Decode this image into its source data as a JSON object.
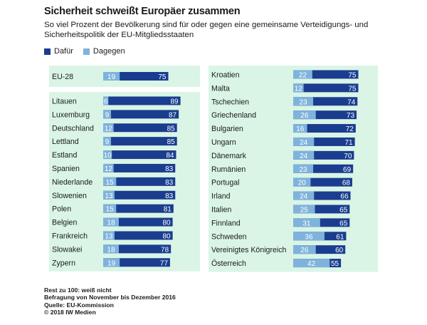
{
  "title": "Sicherheit schweißt Europäer zusammen",
  "subtitle": "So viel Prozent der Bevölkerung sind für oder gegen eine gemeinsame Verteidigungs- und Sicherheitspolitik der EU-Mitgliedsstaaten",
  "colors": {
    "dafur": "#1a3d8f",
    "dagegen": "#7fb3dc",
    "panel": "#daf5e6",
    "text": "#1a1a1a"
  },
  "legend": {
    "dafur": "Dafür",
    "dagegen": "Dagegen"
  },
  "notes": [
    "Rest zu 100: weiß nicht",
    "Befragung von November bis Dezember 2016",
    "Quelle: EU-Kommission",
    "© 2018 IW Medien"
  ],
  "chart_data": {
    "type": "bar",
    "title": "Sicherheit schweißt Europäer zusammen",
    "unit": "Prozent",
    "xlim": [
      0,
      100
    ],
    "series_names": [
      "Dafür",
      "Dagegen"
    ],
    "left_panel": {
      "summary": [
        {
          "country": "EU-28",
          "dafur": 75,
          "dagegen": 19
        }
      ],
      "rows": [
        {
          "country": "Litauen",
          "dafur": 89,
          "dagegen": 6
        },
        {
          "country": "Luxemburg",
          "dafur": 87,
          "dagegen": 9
        },
        {
          "country": "Deutschland",
          "dafur": 85,
          "dagegen": 12
        },
        {
          "country": "Lettland",
          "dafur": 85,
          "dagegen": 9
        },
        {
          "country": "Estland",
          "dafur": 84,
          "dagegen": 10
        },
        {
          "country": "Spanien",
          "dafur": 83,
          "dagegen": 12
        },
        {
          "country": "Niederlande",
          "dafur": 83,
          "dagegen": 15
        },
        {
          "country": "Slowenien",
          "dafur": 83,
          "dagegen": 13
        },
        {
          "country": "Polen",
          "dafur": 81,
          "dagegen": 15
        },
        {
          "country": "Belgien",
          "dafur": 80,
          "dagegen": 18
        },
        {
          "country": "Frankreich",
          "dafur": 80,
          "dagegen": 13
        },
        {
          "country": "Slowakei",
          "dafur": 78,
          "dagegen": 18
        },
        {
          "country": "Zypern",
          "dafur": 77,
          "dagegen": 19
        }
      ]
    },
    "right_panel": {
      "rows": [
        {
          "country": "Kroatien",
          "dafur": 75,
          "dagegen": 22
        },
        {
          "country": "Malta",
          "dafur": 75,
          "dagegen": 12
        },
        {
          "country": "Tschechien",
          "dafur": 74,
          "dagegen": 23
        },
        {
          "country": "Griechenland",
          "dafur": 73,
          "dagegen": 26
        },
        {
          "country": "Bulgarien",
          "dafur": 72,
          "dagegen": 16
        },
        {
          "country": "Ungarn",
          "dafur": 71,
          "dagegen": 24
        },
        {
          "country": "Dänemark",
          "dafur": 70,
          "dagegen": 24
        },
        {
          "country": "Rumänien",
          "dafur": 69,
          "dagegen": 23
        },
        {
          "country": "Portugal",
          "dafur": 68,
          "dagegen": 20
        },
        {
          "country": "Irland",
          "dafur": 66,
          "dagegen": 24
        },
        {
          "country": "Italien",
          "dafur": 65,
          "dagegen": 25
        },
        {
          "country": "Finnland",
          "dafur": 65,
          "dagegen": 31
        },
        {
          "country": "Schweden",
          "dafur": 61,
          "dagegen": 36
        },
        {
          "country": "Vereinigtes Königreich",
          "dafur": 60,
          "dagegen": 26
        },
        {
          "country": "Österreich",
          "dafur": 55,
          "dagegen": 42
        }
      ]
    }
  }
}
